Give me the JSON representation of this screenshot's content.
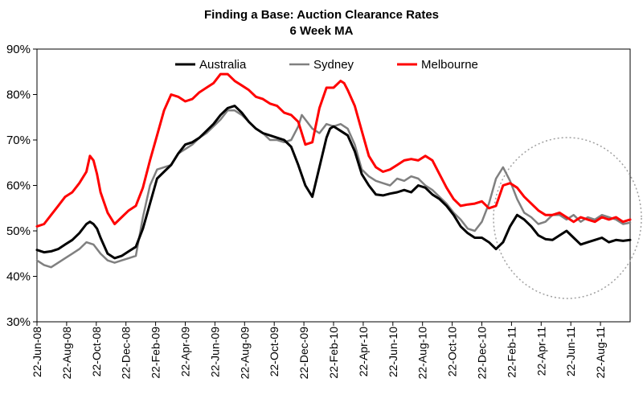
{
  "chart_data": {
    "type": "line",
    "title": "Finding a Base: Auction Clearance Rates",
    "subtitle": "6 Week MA",
    "xlabel": "",
    "ylabel": "",
    "ylim": [
      30,
      90
    ],
    "y_ticks": [
      "30%",
      "40%",
      "50%",
      "60%",
      "70%",
      "80%",
      "90%"
    ],
    "x_tick_labels": [
      "22-Jun-08",
      "22-Aug-08",
      "22-Oct-08",
      "22-Dec-08",
      "22-Feb-09",
      "22-Apr-09",
      "22-Jun-09",
      "22-Aug-09",
      "22-Oct-09",
      "22-Dec-09",
      "22-Feb-10",
      "22-Apr-10",
      "22-Jun-10",
      "22-Aug-10",
      "22-Oct-10",
      "22-Dec-10",
      "22-Feb-11",
      "22-Apr-11",
      "22-Jun-11",
      "22-Aug-11"
    ],
    "x_range_weeks": [
      0,
      168
    ],
    "legend_position": "top-center",
    "annotation": "dotted circle highlighting recent stabilisation (Dec-10 to Sep-11)",
    "series": [
      {
        "name": "Australia",
        "color": "#000000",
        "x": [
          0,
          2,
          4,
          6,
          8,
          10,
          12,
          14,
          15,
          16,
          17,
          18,
          20,
          22,
          24,
          26,
          28,
          30,
          32,
          34,
          36,
          38,
          40,
          42,
          44,
          46,
          48,
          50,
          52,
          54,
          56,
          58,
          60,
          62,
          64,
          66,
          68,
          70,
          72,
          74,
          76,
          78,
          80,
          82,
          83,
          84,
          85,
          86,
          88,
          90,
          92,
          94,
          96,
          98,
          100,
          102,
          104,
          106,
          108,
          110,
          112,
          114,
          116,
          118,
          120,
          122,
          124,
          126,
          128,
          130,
          132,
          134,
          136,
          138,
          140,
          142,
          144,
          146,
          148,
          150,
          152,
          154,
          156,
          158,
          160,
          162,
          164,
          166,
          168
        ],
        "y": [
          45.8,
          45.3,
          45.5,
          46.0,
          47.0,
          48.0,
          49.5,
          51.5,
          52.0,
          51.5,
          50.5,
          48.5,
          45.0,
          44.0,
          44.5,
          45.5,
          46.5,
          50.5,
          56.0,
          61.5,
          63.0,
          64.5,
          67.0,
          69.0,
          69.5,
          70.5,
          72.0,
          73.5,
          75.5,
          77.0,
          77.5,
          76.0,
          74.0,
          72.5,
          71.5,
          71.0,
          70.5,
          70.0,
          68.5,
          64.5,
          60.0,
          57.5,
          64.0,
          70.5,
          72.5,
          73.0,
          72.5,
          72.0,
          71.0,
          67.5,
          62.5,
          60.0,
          58.0,
          57.8,
          58.2,
          58.5,
          59.0,
          58.5,
          60.0,
          59.5,
          58.0,
          57.0,
          55.5,
          53.5,
          51.0,
          49.5,
          48.5,
          48.5,
          47.5,
          46.0,
          47.5,
          51.0,
          53.5,
          52.5,
          51.0,
          49.0,
          48.2,
          48.0,
          49.0,
          50.0,
          48.5,
          47.0,
          47.5,
          48.0,
          48.5,
          47.5,
          48.0,
          47.8,
          48.0
        ]
      },
      {
        "name": "Sydney",
        "color": "#808080",
        "x": [
          0,
          2,
          4,
          6,
          8,
          10,
          12,
          14,
          16,
          18,
          20,
          22,
          24,
          26,
          28,
          30,
          32,
          34,
          36,
          38,
          40,
          42,
          44,
          46,
          48,
          50,
          52,
          54,
          56,
          58,
          60,
          62,
          64,
          66,
          68,
          70,
          72,
          74,
          75,
          76,
          78,
          80,
          82,
          84,
          86,
          88,
          90,
          92,
          94,
          96,
          98,
          100,
          102,
          104,
          106,
          108,
          110,
          112,
          114,
          116,
          118,
          120,
          122,
          124,
          126,
          128,
          130,
          132,
          134,
          136,
          138,
          140,
          142,
          144,
          146,
          148,
          150,
          152,
          154,
          156,
          158,
          160,
          162,
          164,
          166,
          168
        ],
        "y": [
          43.5,
          42.5,
          42.0,
          43.0,
          44.0,
          45.0,
          46.0,
          47.5,
          47.0,
          45.0,
          43.5,
          43.0,
          43.5,
          44.0,
          44.5,
          53.0,
          60.0,
          63.5,
          64.0,
          64.5,
          67.0,
          68.0,
          69.0,
          70.5,
          71.5,
          73.0,
          74.5,
          76.5,
          76.5,
          75.5,
          74.0,
          72.5,
          71.5,
          70.0,
          70.0,
          69.5,
          70.0,
          73.0,
          75.5,
          74.5,
          72.5,
          71.5,
          73.5,
          73.0,
          73.5,
          72.5,
          69.0,
          63.5,
          62.0,
          61.0,
          60.5,
          60.0,
          61.5,
          61.0,
          62.0,
          61.5,
          60.0,
          59.0,
          57.5,
          56.0,
          54.0,
          52.5,
          50.5,
          50.0,
          52.0,
          56.0,
          61.5,
          64.0,
          61.0,
          57.0,
          54.0,
          53.0,
          51.5,
          52.0,
          53.5,
          53.5,
          52.5,
          53.5,
          52.0,
          53.0,
          52.5,
          53.5,
          53.0,
          52.5,
          51.5,
          51.8
        ]
      },
      {
        "name": "Melbourne",
        "color": "#ff0000",
        "x": [
          0,
          2,
          4,
          6,
          8,
          10,
          12,
          14,
          15,
          16,
          17,
          18,
          20,
          22,
          24,
          26,
          28,
          30,
          32,
          34,
          36,
          38,
          40,
          42,
          44,
          46,
          48,
          50,
          52,
          54,
          56,
          58,
          60,
          62,
          64,
          66,
          68,
          70,
          72,
          74,
          76,
          78,
          80,
          82,
          84,
          86,
          87,
          88,
          90,
          92,
          94,
          96,
          98,
          100,
          102,
          104,
          106,
          108,
          110,
          112,
          114,
          116,
          118,
          120,
          122,
          124,
          126,
          128,
          130,
          132,
          134,
          136,
          138,
          140,
          142,
          144,
          146,
          148,
          150,
          152,
          154,
          156,
          158,
          160,
          162,
          164,
          166,
          168
        ],
        "y": [
          51.0,
          51.5,
          53.5,
          55.5,
          57.5,
          58.5,
          60.5,
          63.0,
          66.5,
          65.5,
          62.5,
          58.5,
          54.0,
          51.5,
          53.0,
          54.5,
          55.5,
          59.5,
          65.5,
          71.0,
          76.5,
          80.0,
          79.5,
          78.5,
          79.0,
          80.5,
          81.5,
          82.5,
          84.5,
          84.5,
          83.0,
          82.0,
          81.0,
          79.5,
          79.0,
          78.0,
          77.5,
          76.0,
          75.5,
          74.0,
          69.0,
          69.5,
          77.0,
          81.5,
          81.5,
          83.0,
          82.5,
          81.0,
          77.5,
          72.0,
          66.5,
          64.0,
          63.0,
          63.5,
          64.5,
          65.5,
          65.8,
          65.5,
          66.5,
          65.5,
          62.5,
          59.5,
          57.0,
          55.5,
          55.8,
          56.0,
          56.5,
          55.0,
          55.5,
          60.0,
          60.5,
          59.5,
          57.5,
          56.0,
          54.5,
          53.5,
          53.5,
          54.0,
          53.0,
          52.0,
          53.0,
          52.5,
          52.0,
          53.0,
          52.5,
          53.0,
          52.0,
          52.5
        ]
      }
    ]
  }
}
